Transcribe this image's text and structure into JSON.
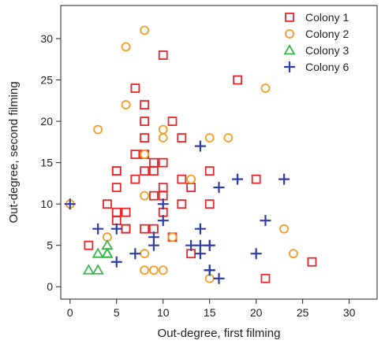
{
  "chart_data": {
    "type": "scatter",
    "xlabel": "Out-degree, first filming",
    "ylabel": "Out-degree, second filming",
    "xlim": [
      -1,
      33
    ],
    "ylim": [
      -1.5,
      34
    ],
    "x_ticks": [
      0,
      5,
      10,
      15,
      20,
      25,
      30
    ],
    "y_ticks": [
      0,
      5,
      10,
      15,
      20,
      25,
      30
    ],
    "grid": false,
    "legend_position": "top-right",
    "series": [
      {
        "name": "Colony 1",
        "marker": "square",
        "color": "#e8262a",
        "points": [
          [
            2,
            5
          ],
          [
            5,
            9
          ],
          [
            5,
            8
          ],
          [
            5,
            14
          ],
          [
            5,
            14
          ],
          [
            5,
            12
          ],
          [
            4,
            10
          ],
          [
            6,
            9
          ],
          [
            6,
            7
          ],
          [
            6,
            7
          ],
          [
            7,
            24
          ],
          [
            7,
            16
          ],
          [
            7,
            13
          ],
          [
            8,
            22
          ],
          [
            8,
            20
          ],
          [
            8,
            18
          ],
          [
            8,
            16
          ],
          [
            8,
            7
          ],
          [
            8,
            14
          ],
          [
            9,
            15
          ],
          [
            9,
            14
          ],
          [
            9,
            11
          ],
          [
            9,
            7
          ],
          [
            10,
            28
          ],
          [
            10,
            15
          ],
          [
            10,
            12
          ],
          [
            10,
            11
          ],
          [
            10,
            9
          ],
          [
            11,
            20
          ],
          [
            11,
            6
          ],
          [
            12,
            18
          ],
          [
            12,
            13
          ],
          [
            12,
            10
          ],
          [
            13,
            12
          ],
          [
            13,
            4
          ],
          [
            15,
            14
          ],
          [
            15,
            10
          ],
          [
            18,
            25
          ],
          [
            20,
            13
          ],
          [
            21,
            1
          ],
          [
            26,
            3
          ]
        ]
      },
      {
        "name": "Colony 2",
        "marker": "circle",
        "color": "#f39c26",
        "points": [
          [
            0,
            10
          ],
          [
            3,
            19
          ],
          [
            4,
            6
          ],
          [
            6,
            29
          ],
          [
            6,
            22
          ],
          [
            8,
            31
          ],
          [
            8,
            16
          ],
          [
            8,
            11
          ],
          [
            8,
            4
          ],
          [
            8,
            2
          ],
          [
            9,
            2
          ],
          [
            10,
            18
          ],
          [
            10,
            19
          ],
          [
            10,
            2
          ],
          [
            11,
            6
          ],
          [
            13,
            13
          ],
          [
            15,
            18
          ],
          [
            15,
            1
          ],
          [
            17,
            18
          ],
          [
            21,
            24
          ],
          [
            23,
            7
          ],
          [
            24,
            4
          ]
        ]
      },
      {
        "name": "Colony 3",
        "marker": "triangle",
        "color": "#3ab54a",
        "points": [
          [
            2,
            2
          ],
          [
            3,
            2
          ],
          [
            3,
            4
          ],
          [
            4,
            4
          ],
          [
            4,
            5
          ],
          [
            4,
            4
          ]
        ]
      },
      {
        "name": "Colony 6",
        "marker": "plus",
        "color": "#2f3ea4",
        "points": [
          [
            0,
            10
          ],
          [
            3,
            7
          ],
          [
            5,
            3
          ],
          [
            5,
            7
          ],
          [
            7,
            4
          ],
          [
            9,
            6
          ],
          [
            9,
            5
          ],
          [
            10,
            10
          ],
          [
            10,
            8
          ],
          [
            13,
            5
          ],
          [
            14,
            4
          ],
          [
            14,
            5
          ],
          [
            14,
            7
          ],
          [
            14,
            17
          ],
          [
            15,
            5
          ],
          [
            15,
            5
          ],
          [
            15,
            2
          ],
          [
            15,
            2
          ],
          [
            16,
            1
          ],
          [
            16,
            12
          ],
          [
            18,
            13
          ],
          [
            20,
            4
          ],
          [
            21,
            8
          ],
          [
            23,
            13
          ]
        ]
      }
    ]
  }
}
